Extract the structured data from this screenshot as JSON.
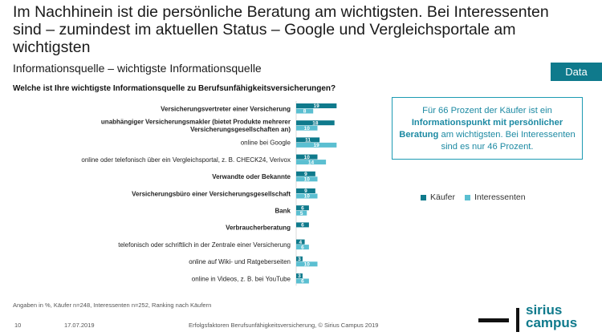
{
  "headline": "Im Nachhinein ist die persönliche Beratung am wichtigsten. Bei Interessenten sind – zumindest im aktuellen Status – Google und Vergleichsportale am wichtigsten",
  "subtitle": "Informationsquelle – wichtigste Informationsquelle",
  "data_tab": "Data",
  "callout": {
    "part1": "Für 66 Prozent der Käufer ist ein ",
    "strong": "Informationspunkt mit persönlicher Beratung",
    "part2": " am wichtigsten. Bei Interessenten sind es nur 46 Prozent."
  },
  "footnote": "Angaben in %,  Käufer n=248, Interessenten n=252, Ranking nach Käufern",
  "footer": {
    "page": "10",
    "date": "17.07.2019",
    "source": "Erfolgsfaktoren Berufsunfähigkeitsversicherung, © Sirius Campus 2019"
  },
  "logo": {
    "line1": "sirius",
    "line2": "campus"
  },
  "colors": {
    "kaeufer": "#0f7a8c",
    "interessenten": "#5bbfd1",
    "accent": "#0f7a8c"
  },
  "chart_data": {
    "type": "bar",
    "orientation": "horizontal",
    "title": "Welche ist Ihre wichtigste Informationsquelle zu Berufsunfähigkeitsversicherungen?",
    "legend_position": "right",
    "categories": [
      {
        "lines": [
          "Versicherungsvertreter einer Versicherung"
        ],
        "bold": true
      },
      {
        "lines": [
          "unabhängiger Versicherungsmakler (bietet Produkte mehrerer",
          "Versicherungsgesellschaften an)"
        ],
        "bold": true
      },
      {
        "lines": [
          "online bei Google"
        ],
        "bold": false
      },
      {
        "lines": [
          "online oder telefonisch über ein Vergleichsportal, z. B. CHECK24, Verivox"
        ],
        "bold": false
      },
      {
        "lines": [
          "Verwandte oder Bekannte"
        ],
        "bold": true
      },
      {
        "lines": [
          "Versicherungsbüro einer Versicherungsgesellschaft"
        ],
        "bold": true
      },
      {
        "lines": [
          "Bank"
        ],
        "bold": true
      },
      {
        "lines": [
          "Verbraucherberatung"
        ],
        "bold": true
      },
      {
        "lines": [
          "telefonisch oder schriftlich in der Zentrale einer Versicherung"
        ],
        "bold": false
      },
      {
        "lines": [
          "online auf Wiki- und Ratgeberseiten"
        ],
        "bold": false
      },
      {
        "lines": [
          "online in Videos, z. B. bei YouTube"
        ],
        "bold": false
      }
    ],
    "series": [
      {
        "name": "Käufer",
        "values": [
          19,
          18,
          11,
          10,
          9,
          9,
          6,
          6,
          4,
          3,
          3
        ]
      },
      {
        "name": "Interessenten",
        "values": [
          8,
          10,
          19,
          14,
          10,
          10,
          5,
          null,
          6,
          10,
          6
        ]
      }
    ],
    "xlim": [
      0,
      20
    ]
  }
}
